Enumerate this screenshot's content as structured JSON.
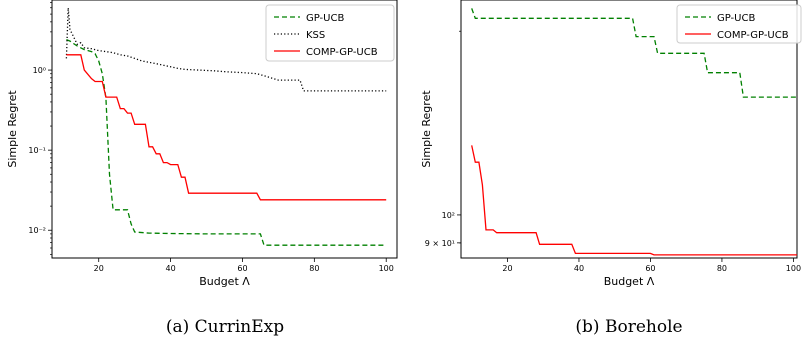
{
  "chart_data": [
    {
      "type": "line",
      "caption": "(a) CurrinExp",
      "xlabel": "Budget Λ",
      "ylabel": "Simple Regret",
      "yscale": "log",
      "xlim": [
        7,
        103
      ],
      "ylim": [
        0.0045,
        7.5
      ],
      "grid": false,
      "legend_position": "top-right",
      "x_ticks": [
        {
          "v": 20,
          "label": "20"
        },
        {
          "v": 40,
          "label": "40"
        },
        {
          "v": 60,
          "label": "60"
        },
        {
          "v": 80,
          "label": "80"
        },
        {
          "v": 100,
          "label": "100"
        }
      ],
      "y_ticks": [
        {
          "v": 1,
          "label": "10⁰"
        },
        {
          "v": 0.1,
          "label": "10⁻¹"
        },
        {
          "v": 0.01,
          "label": "10⁻²"
        }
      ],
      "series": [
        {
          "name": "GP-UCB",
          "color": "#008000",
          "dash": "dashed",
          "points": [
            [
              11,
              2.4
            ],
            [
              12,
              2.3
            ],
            [
              14,
              2.0
            ],
            [
              16,
              1.8
            ],
            [
              18,
              1.7
            ],
            [
              19,
              1.6
            ],
            [
              20,
              1.3
            ],
            [
              21,
              0.9
            ],
            [
              22,
              0.45
            ],
            [
              23,
              0.05
            ],
            [
              24,
              0.018
            ],
            [
              28,
              0.018
            ],
            [
              29,
              0.012
            ],
            [
              30,
              0.0095
            ],
            [
              34,
              0.0092
            ],
            [
              40,
              0.0091
            ],
            [
              50,
              0.009
            ],
            [
              60,
              0.009
            ],
            [
              65,
              0.009
            ],
            [
              66,
              0.0065
            ],
            [
              75,
              0.0065
            ],
            [
              100,
              0.0065
            ]
          ]
        },
        {
          "name": "KSS",
          "color": "#000000",
          "dash": "dotted",
          "points": [
            [
              11,
              1.4
            ],
            [
              11.5,
              6.0
            ],
            [
              12,
              3.2
            ],
            [
              13,
              2.6
            ],
            [
              14,
              2.1
            ],
            [
              15,
              2.2
            ],
            [
              16,
              1.9
            ],
            [
              18,
              1.85
            ],
            [
              20,
              1.75
            ],
            [
              22,
              1.7
            ],
            [
              24,
              1.65
            ],
            [
              26,
              1.55
            ],
            [
              28,
              1.5
            ],
            [
              30,
              1.4
            ],
            [
              32,
              1.3
            ],
            [
              34,
              1.25
            ],
            [
              36,
              1.2
            ],
            [
              38,
              1.15
            ],
            [
              40,
              1.1
            ],
            [
              42,
              1.05
            ],
            [
              44,
              1.02
            ],
            [
              48,
              1.0
            ],
            [
              52,
              0.98
            ],
            [
              56,
              0.95
            ],
            [
              60,
              0.93
            ],
            [
              64,
              0.9
            ],
            [
              66,
              0.85
            ],
            [
              70,
              0.75
            ],
            [
              76,
              0.75
            ],
            [
              77,
              0.55
            ],
            [
              100,
              0.55
            ]
          ]
        },
        {
          "name": "COMP-GP-UCB",
          "color": "#ff0000",
          "dash": "solid",
          "points": [
            [
              11,
              1.55
            ],
            [
              15,
              1.55
            ],
            [
              16,
              1.0
            ],
            [
              18,
              0.78
            ],
            [
              19,
              0.72
            ],
            [
              21,
              0.72
            ],
            [
              22,
              0.46
            ],
            [
              25,
              0.46
            ],
            [
              26,
              0.33
            ],
            [
              27,
              0.33
            ],
            [
              28,
              0.29
            ],
            [
              29,
              0.29
            ],
            [
              30,
              0.21
            ],
            [
              33,
              0.21
            ],
            [
              34,
              0.11
            ],
            [
              35,
              0.11
            ],
            [
              36,
              0.09
            ],
            [
              37,
              0.09
            ],
            [
              38,
              0.07
            ],
            [
              39,
              0.07
            ],
            [
              40,
              0.066
            ],
            [
              42,
              0.066
            ],
            [
              43,
              0.046
            ],
            [
              44,
              0.046
            ],
            [
              45,
              0.029
            ],
            [
              64,
              0.029
            ],
            [
              65,
              0.024
            ],
            [
              100,
              0.024
            ]
          ]
        }
      ]
    },
    {
      "type": "line",
      "caption": "(b) Borehole",
      "xlabel": "Budget Λ",
      "ylabel": "Simple Regret",
      "yscale": "log",
      "xlim": [
        7,
        101
      ],
      "ylim": [
        85,
        225
      ],
      "grid": false,
      "legend_position": "top-right",
      "x_ticks": [
        {
          "v": 20,
          "label": "20"
        },
        {
          "v": 40,
          "label": "40"
        },
        {
          "v": 60,
          "label": "60"
        },
        {
          "v": 80,
          "label": "80"
        },
        {
          "v": 100,
          "label": "100"
        }
      ],
      "y_ticks": [
        {
          "v": 100,
          "label": "10²"
        },
        {
          "v": 90,
          "label": "9 × 10¹"
        }
      ],
      "series": [
        {
          "name": "GP-UCB",
          "color": "#008000",
          "dash": "dashed",
          "points": [
            [
              10,
              218
            ],
            [
              11,
              210
            ],
            [
              15,
              210
            ],
            [
              55,
              210
            ],
            [
              56,
              196
            ],
            [
              61,
              196
            ],
            [
              62,
              184
            ],
            [
              75,
              184
            ],
            [
              76,
              171
            ],
            [
              85,
              171
            ],
            [
              86,
              156
            ],
            [
              101,
              156
            ]
          ]
        },
        {
          "name": "COMP-GP-UCB",
          "color": "#ff0000",
          "dash": "solid",
          "points": [
            [
              10,
              130
            ],
            [
              11,
              122
            ],
            [
              12,
              122
            ],
            [
              13,
              112
            ],
            [
              14,
              94.5
            ],
            [
              16,
              94.5
            ],
            [
              17,
              93.5
            ],
            [
              28,
              93.5
            ],
            [
              29,
              89.5
            ],
            [
              38,
              89.5
            ],
            [
              39,
              86.5
            ],
            [
              60,
              86.5
            ],
            [
              61,
              86
            ],
            [
              101,
              86
            ]
          ]
        }
      ]
    }
  ]
}
